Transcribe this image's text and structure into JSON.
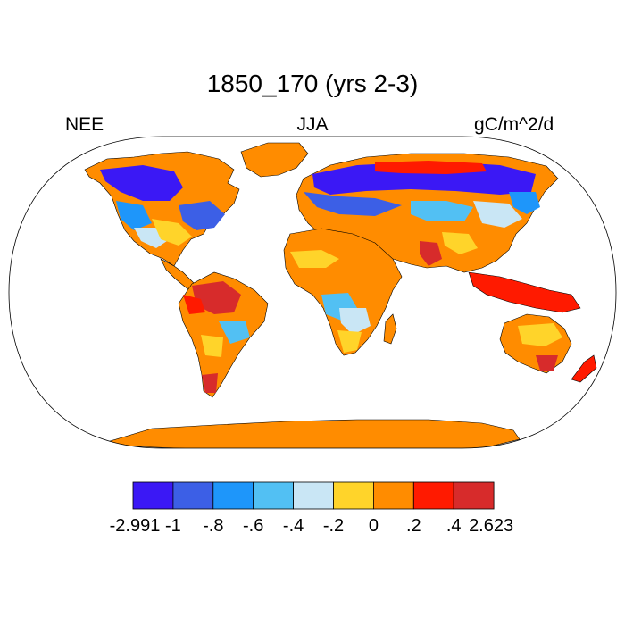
{
  "title": "1850_170 (yrs 2-3)",
  "left_label": "NEE",
  "center_label": "JJA",
  "right_label": "gC/m^2/d",
  "colorbar": {
    "colors": [
      "#3b18f5",
      "#3c5fe6",
      "#1e96fa",
      "#52c0f3",
      "#c9e6f5",
      "#ffd42a",
      "#ff8c00",
      "#ff1a00",
      "#d72b2b"
    ],
    "labels": [
      "-2.991",
      "-1",
      "-.8",
      "-.6",
      "-.4",
      "-.2",
      "0",
      ".2",
      ".4",
      "2.623"
    ]
  },
  "colors": {
    "ocean": "#ffffff",
    "outline": "#000000",
    "default_land": "#ff8c00"
  }
}
